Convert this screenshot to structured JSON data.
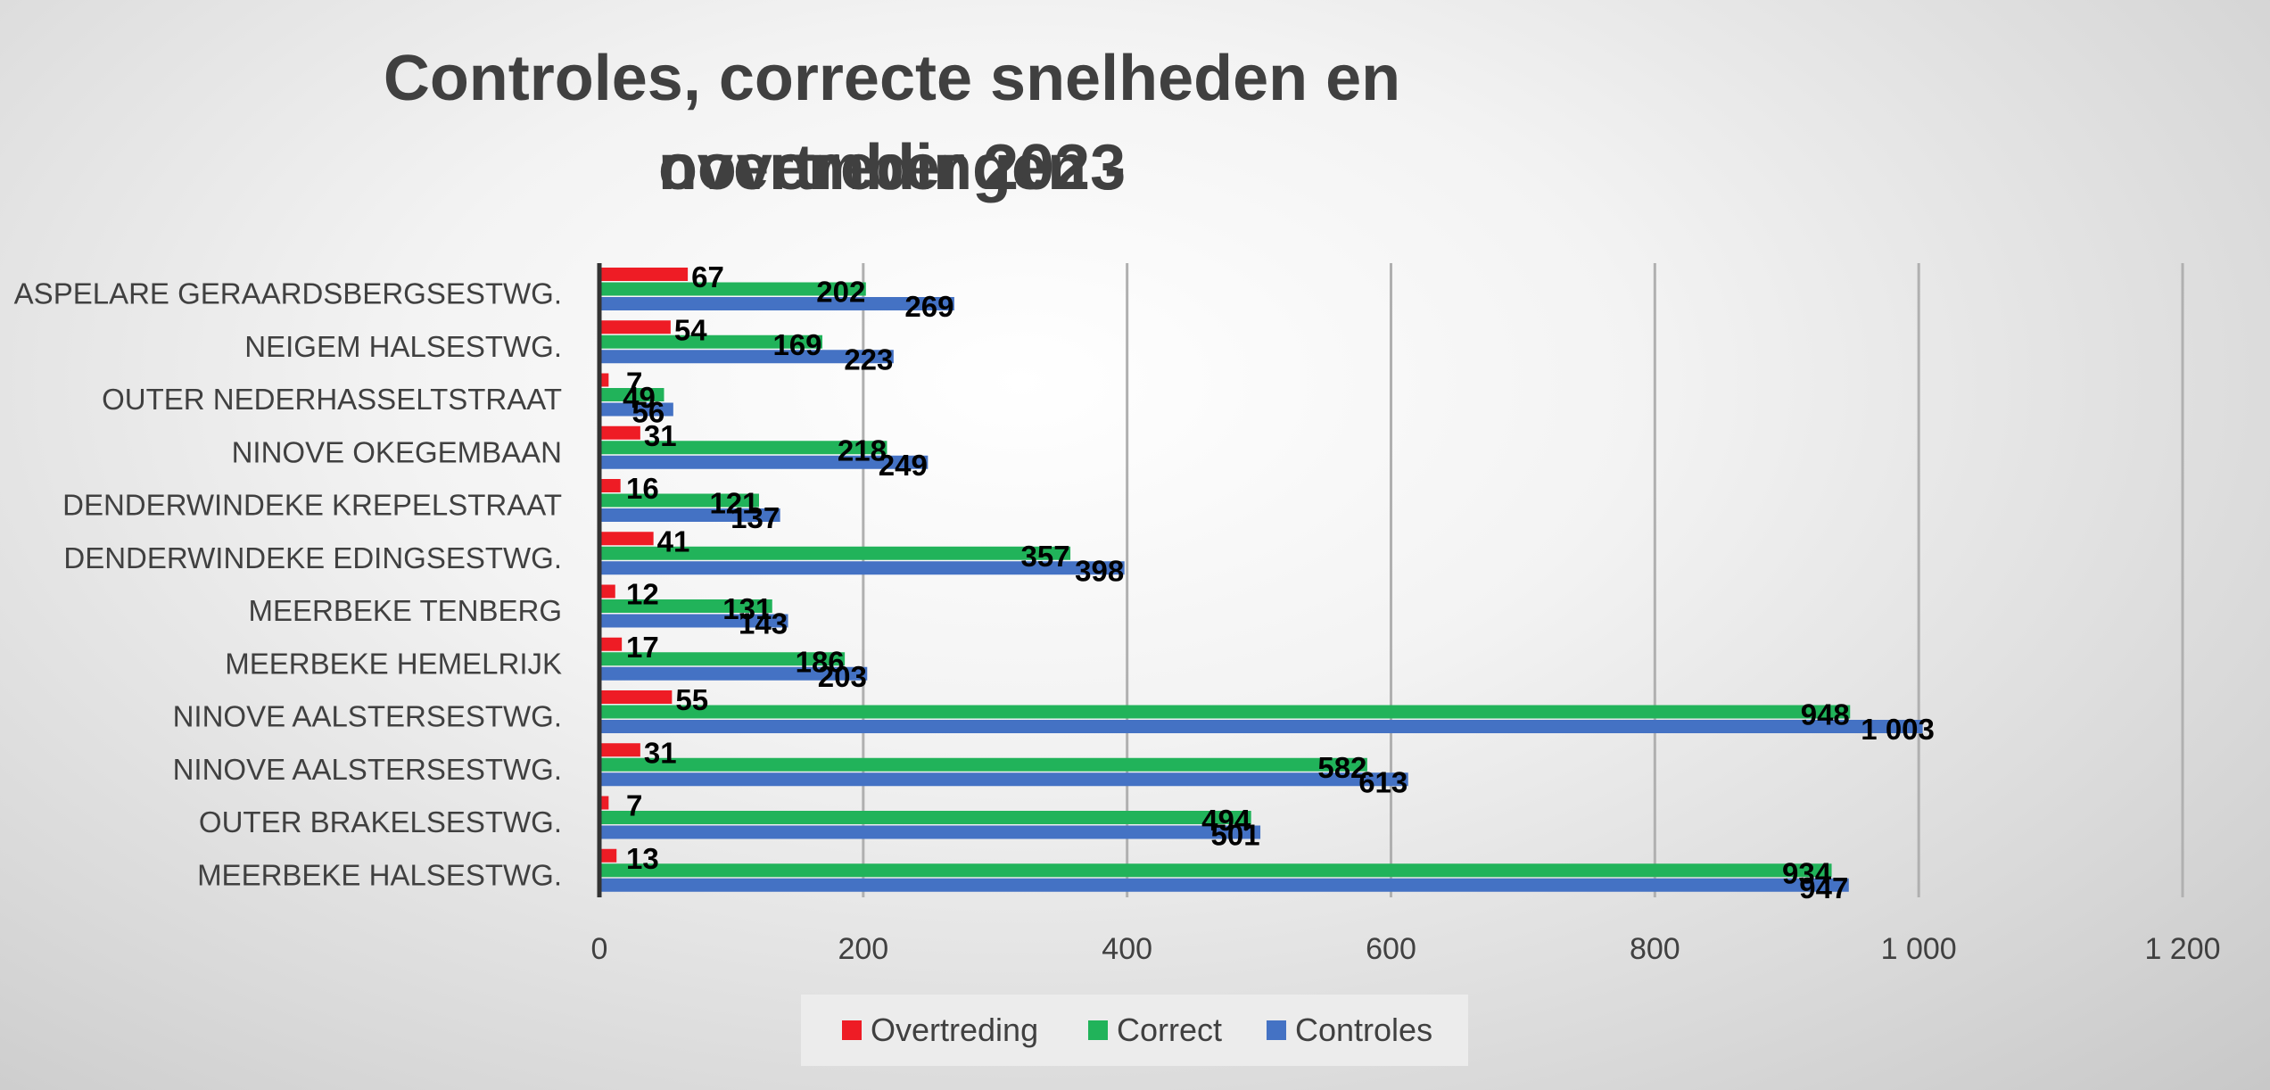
{
  "colors": {
    "overtreding": "#ee1c25",
    "correct": "#21b35a",
    "controles": "#4472c4",
    "grid": "#b0b0b0",
    "axis": "#333333",
    "text": "#404040"
  },
  "chart_data": {
    "type": "bar",
    "orientation": "horizontal",
    "title_line1": "Controles, correcte snelheden en overtredingen -",
    "title_line2": "november 2023",
    "xlim": [
      0,
      1200
    ],
    "xticks": [
      "0",
      "200",
      "400",
      "600",
      "800",
      "1 000",
      "1 200"
    ],
    "xtick_values": [
      0,
      200,
      400,
      600,
      800,
      1000,
      1200
    ],
    "grid": true,
    "legend_position": "bottom",
    "categories": [
      "ASPELARE GERAARDSBERGSESTWG.",
      "NEIGEM HALSESTWG.",
      "OUTER NEDERHASSELTSTRAAT",
      "NINOVE OKEGEMBAAN",
      "DENDERWINDEKE KREPELSTRAAT",
      "DENDERWINDEKE EDINGSESTWG.",
      "MEERBEKE TENBERG",
      "MEERBEKE HEMELRIJK",
      "NINOVE AALSTERSESTWG.",
      "NINOVE AALSTERSESTWG.",
      "OUTER BRAKELSESTWG.",
      "MEERBEKE HALSESTWG."
    ],
    "series": [
      {
        "name": "Overtreding",
        "values": [
          67,
          54,
          7,
          31,
          16,
          41,
          12,
          17,
          55,
          31,
          7,
          13
        ],
        "labels": [
          "67",
          "54",
          "7",
          "31",
          "16",
          "41",
          "12",
          "17",
          "55",
          "31",
          "7",
          "13"
        ]
      },
      {
        "name": "Correct",
        "values": [
          202,
          169,
          49,
          218,
          121,
          357,
          131,
          186,
          948,
          582,
          494,
          934
        ],
        "labels": [
          "202",
          "169",
          "49",
          "218",
          "121",
          "357",
          "131",
          "186",
          "948",
          "582",
          "494",
          "934"
        ]
      },
      {
        "name": "Controles",
        "values": [
          269,
          223,
          56,
          249,
          137,
          398,
          143,
          203,
          1003,
          613,
          501,
          947
        ],
        "labels": [
          "269",
          "223",
          "56",
          "249",
          "137",
          "398",
          "143",
          "203",
          "1 003",
          "613",
          "501",
          "947"
        ]
      }
    ]
  }
}
